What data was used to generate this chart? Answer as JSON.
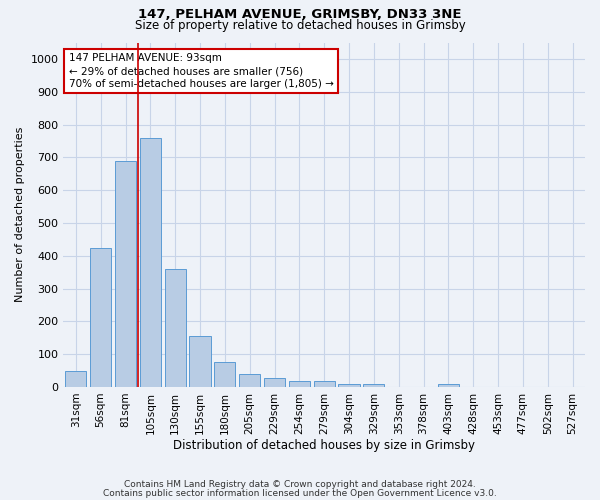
{
  "title1": "147, PELHAM AVENUE, GRIMSBY, DN33 3NE",
  "title2": "Size of property relative to detached houses in Grimsby",
  "xlabel": "Distribution of detached houses by size in Grimsby",
  "ylabel": "Number of detached properties",
  "categories": [
    "31sqm",
    "56sqm",
    "81sqm",
    "105sqm",
    "130sqm",
    "155sqm",
    "180sqm",
    "205sqm",
    "229sqm",
    "254sqm",
    "279sqm",
    "304sqm",
    "329sqm",
    "353sqm",
    "378sqm",
    "403sqm",
    "428sqm",
    "453sqm",
    "477sqm",
    "502sqm",
    "527sqm"
  ],
  "values": [
    50,
    425,
    690,
    760,
    360,
    155,
    75,
    40,
    28,
    18,
    18,
    10,
    10,
    0,
    0,
    10,
    0,
    0,
    0,
    0,
    0
  ],
  "bar_color": "#b8cce4",
  "bar_edge_color": "#5b9bd5",
  "grid_color": "#c8d4e8",
  "annotation_text": "147 PELHAM AVENUE: 93sqm\n← 29% of detached houses are smaller (756)\n70% of semi-detached houses are larger (1,805) →",
  "annotation_box_color": "#ffffff",
  "annotation_box_edge": "#cc0000",
  "vline_color": "#cc0000",
  "vline_x": 2.5,
  "ylim": [
    0,
    1050
  ],
  "yticks": [
    0,
    100,
    200,
    300,
    400,
    500,
    600,
    700,
    800,
    900,
    1000
  ],
  "footnote1": "Contains HM Land Registry data © Crown copyright and database right 2024.",
  "footnote2": "Contains public sector information licensed under the Open Government Licence v3.0.",
  "background_color": "#eef2f8"
}
